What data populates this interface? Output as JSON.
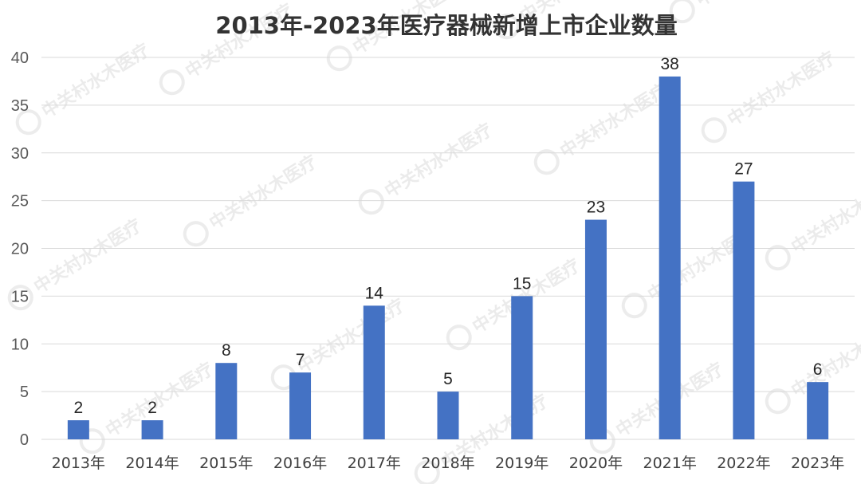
{
  "watermark": {
    "text": "中关村水木医疗",
    "color": "#d4d4d4"
  },
  "chart_data": {
    "type": "bar",
    "title": "2013年-2023年医疗器械新增上市企业数量",
    "xlabel": "",
    "ylabel": "",
    "categories": [
      "2013年",
      "2014年",
      "2015年",
      "2016年",
      "2017年",
      "2018年",
      "2019年",
      "2020年",
      "2021年",
      "2022年",
      "2023年"
    ],
    "series": [
      {
        "values": [
          2,
          2,
          8,
          7,
          14,
          5,
          15,
          23,
          38,
          27,
          6
        ],
        "color": "#4472c4"
      }
    ],
    "ylim": [
      0,
      40
    ],
    "yticks": [
      0,
      5,
      10,
      15,
      20,
      25,
      30,
      35,
      40
    ],
    "grid": true,
    "data_labels": true,
    "legend": "none"
  }
}
